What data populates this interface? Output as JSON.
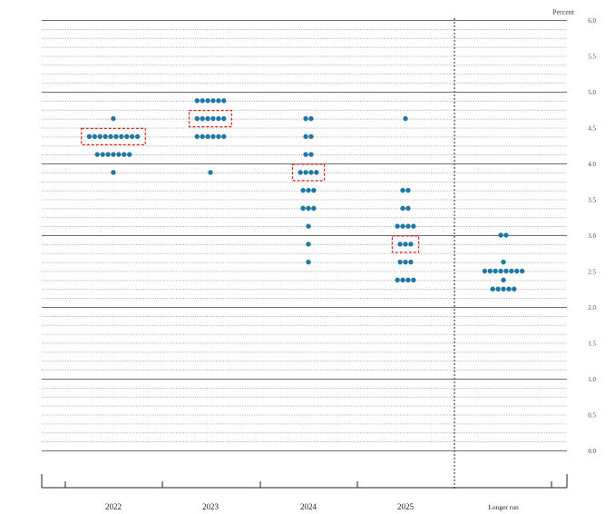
{
  "chart_data": {
    "type": "scatter",
    "title": "",
    "unit_label": "Percent",
    "xlabel": "",
    "ylabel": "",
    "ylim": [
      0,
      6
    ],
    "y_tick_step": 0.5,
    "y_tick_labels": [
      "0.0",
      "0.5",
      "1.0",
      "1.5",
      "2.0",
      "2.5",
      "3.0",
      "3.5",
      "4.0",
      "4.5",
      "5.0",
      "5.5",
      "6.0"
    ],
    "grid": "dotted lines every 0.125, solid lines at whole percents",
    "categories": [
      "2022",
      "2023",
      "2024",
      "2025",
      "Longer run"
    ],
    "columns": [
      {
        "label": "2022",
        "dots": [
          {
            "y": 4.625,
            "count": 1
          },
          {
            "y": 4.375,
            "count": 10
          },
          {
            "y": 4.125,
            "count": 7
          },
          {
            "y": 3.875,
            "count": 1
          }
        ]
      },
      {
        "label": "2023",
        "dots": [
          {
            "y": 4.875,
            "count": 6
          },
          {
            "y": 4.625,
            "count": 6
          },
          {
            "y": 4.375,
            "count": 6
          },
          {
            "y": 3.875,
            "count": 1
          }
        ]
      },
      {
        "label": "2024",
        "dots": [
          {
            "y": 4.625,
            "count": 2
          },
          {
            "y": 4.375,
            "count": 2
          },
          {
            "y": 4.125,
            "count": 2
          },
          {
            "y": 3.875,
            "count": 4
          },
          {
            "y": 3.625,
            "count": 3
          },
          {
            "y": 3.375,
            "count": 3
          },
          {
            "y": 3.125,
            "count": 1
          },
          {
            "y": 2.875,
            "count": 1
          },
          {
            "y": 2.625,
            "count": 1
          }
        ]
      },
      {
        "label": "2025",
        "dots": [
          {
            "y": 4.625,
            "count": 1
          },
          {
            "y": 3.625,
            "count": 2
          },
          {
            "y": 3.375,
            "count": 2
          },
          {
            "y": 3.125,
            "count": 4
          },
          {
            "y": 2.875,
            "count": 3
          },
          {
            "y": 2.625,
            "count": 3
          },
          {
            "y": 2.375,
            "count": 4
          }
        ]
      },
      {
        "label": "Longer run",
        "dots": [
          {
            "y": 3.0,
            "count": 2
          },
          {
            "y": 2.625,
            "count": 1
          },
          {
            "y": 2.5,
            "count": 8
          },
          {
            "y": 2.375,
            "count": 1
          },
          {
            "y": 2.25,
            "count": 5
          }
        ]
      }
    ],
    "highlighted_medians": [
      {
        "column": "2022",
        "y": 4.375
      },
      {
        "column": "2023",
        "y": 4.625
      },
      {
        "column": "2024",
        "y": 3.875
      },
      {
        "column": "2025",
        "y": 2.875
      }
    ],
    "dot_color": "#1f77a8",
    "highlight_color": "#e02020",
    "longer_run_separator": "dotted vertical line"
  }
}
